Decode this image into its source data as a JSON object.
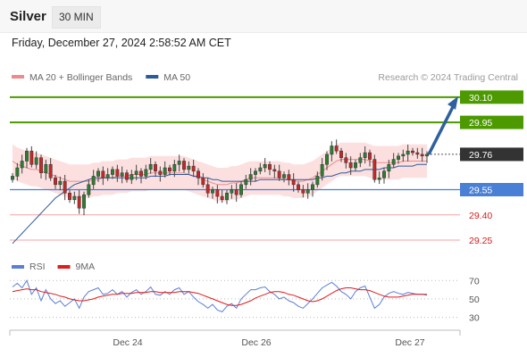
{
  "header": {
    "instrument": "Silver",
    "timeframe": "30 MIN"
  },
  "timestamp": "Friday, December 27, 2024 2:58:52 AM CET",
  "legend": [
    {
      "label": "MA 20 + Bollinger Bands",
      "color": "#f08a8a"
    },
    {
      "label": "MA 50",
      "color": "#2d5a9b"
    }
  ],
  "credit": "Research © 2024 Trading Central",
  "rsi_legend": [
    {
      "label": "RSI",
      "color": "#5b7fd6"
    },
    {
      "label": "9MA",
      "color": "#e21b1b"
    }
  ],
  "colors": {
    "resistance": "#4c9a00",
    "pivot": "#4a7fd6",
    "support": "#f4a3a3",
    "support_text": "#d32020",
    "last": "#333333",
    "arrow": "#2e5f9e",
    "candle_up": "#2e7d32",
    "candle_down": "#c62828",
    "band": "#fbd3d3"
  },
  "chart_data": {
    "type": "candlestick",
    "price_ylim": [
      29.16,
      30.2
    ],
    "x_ticks": [
      "Dec 24",
      "Dec 26",
      "Dec 27"
    ],
    "levels": [
      {
        "value": 30.1,
        "label": "30.10",
        "kind": "resistance"
      },
      {
        "value": 29.95,
        "label": "29.95",
        "kind": "resistance"
      },
      {
        "value": 29.76,
        "label": "29.76",
        "kind": "last"
      },
      {
        "value": 29.55,
        "label": "29.55",
        "kind": "pivot"
      },
      {
        "value": 29.4,
        "label": "29.40",
        "kind": "support"
      },
      {
        "value": 29.25,
        "label": "29.25",
        "kind": "support"
      }
    ],
    "close": [
      29.63,
      29.68,
      29.72,
      29.78,
      29.7,
      29.74,
      29.65,
      29.7,
      29.62,
      29.58,
      29.6,
      29.53,
      29.49,
      29.51,
      29.44,
      29.52,
      29.58,
      29.63,
      29.66,
      29.62,
      29.64,
      29.67,
      29.63,
      29.65,
      29.61,
      29.64,
      29.66,
      29.63,
      29.67,
      29.7,
      29.66,
      29.64,
      29.68,
      29.66,
      29.7,
      29.72,
      29.67,
      29.69,
      29.66,
      29.62,
      29.58,
      29.53,
      29.55,
      29.51,
      29.49,
      29.53,
      29.55,
      29.52,
      29.58,
      29.61,
      29.64,
      29.66,
      29.68,
      29.7,
      29.67,
      29.66,
      29.62,
      29.64,
      29.61,
      29.58,
      29.55,
      29.53,
      29.55,
      29.58,
      29.63,
      29.7,
      29.76,
      29.81,
      29.78,
      29.74,
      29.71,
      29.68,
      29.71,
      29.74,
      29.77,
      29.73,
      29.61,
      29.62,
      29.66,
      29.7,
      29.73,
      29.75,
      29.76,
      29.78,
      29.77,
      29.76,
      29.75,
      29.76
    ],
    "ma20": [
      29.72,
      29.7,
      29.69,
      29.68,
      29.67,
      29.67,
      29.66,
      29.65,
      29.64,
      29.63,
      29.62,
      29.61,
      29.6,
      29.6,
      29.6,
      29.6,
      29.6,
      29.61,
      29.61,
      29.62,
      29.62,
      29.62,
      29.63,
      29.63,
      29.63,
      29.64,
      29.64,
      29.64,
      29.64,
      29.65,
      29.65,
      29.65,
      29.65,
      29.65,
      29.65,
      29.65,
      29.65,
      29.64,
      29.63,
      29.62,
      29.61,
      29.6,
      29.59,
      29.58,
      29.58,
      29.58,
      29.59,
      29.59,
      29.6,
      29.61,
      29.62,
      29.62,
      29.62,
      29.62,
      29.62,
      29.62,
      29.62,
      29.61,
      29.61,
      29.6,
      29.6,
      29.6,
      29.61,
      29.62,
      29.64,
      29.66,
      29.68,
      29.7,
      29.72,
      29.73,
      29.73,
      29.73,
      29.73,
      29.73,
      29.73,
      29.72,
      29.71,
      29.71,
      29.71,
      29.71,
      29.71,
      29.71,
      29.72,
      29.72,
      29.72,
      29.72,
      29.72,
      29.72
    ],
    "ma50": [
      29.23,
      29.26,
      29.29,
      29.32,
      29.35,
      29.38,
      29.41,
      29.44,
      29.47,
      29.5,
      29.52,
      29.54,
      29.56,
      29.58,
      29.59,
      29.6,
      29.61,
      29.62,
      29.62,
      29.62,
      29.62,
      29.62,
      29.62,
      29.62,
      29.62,
      29.62,
      29.62,
      29.62,
      29.62,
      29.63,
      29.63,
      29.63,
      29.63,
      29.64,
      29.64,
      29.64,
      29.64,
      29.64,
      29.63,
      29.63,
      29.62,
      29.62,
      29.61,
      29.61,
      29.6,
      29.6,
      29.6,
      29.6,
      29.6,
      29.6,
      29.6,
      29.6,
      29.61,
      29.61,
      29.61,
      29.61,
      29.61,
      29.61,
      29.61,
      29.61,
      29.61,
      29.61,
      29.61,
      29.61,
      29.62,
      29.62,
      29.63,
      29.63,
      29.64,
      29.65,
      29.65,
      29.66,
      29.66,
      29.66,
      29.67,
      29.67,
      29.67,
      29.67,
      29.68,
      29.68,
      29.68,
      29.69,
      29.69,
      29.69,
      29.69,
      29.7,
      29.7,
      29.7
    ],
    "bb_width": 0.1,
    "rsi_ylim": [
      18,
      78
    ],
    "rsi_levels": [
      70,
      50,
      30
    ],
    "rsi": [
      63,
      67,
      62,
      70,
      55,
      62,
      48,
      60,
      50,
      45,
      48,
      42,
      46,
      50,
      40,
      52,
      58,
      60,
      62,
      55,
      56,
      60,
      55,
      58,
      52,
      57,
      60,
      55,
      58,
      63,
      55,
      54,
      58,
      55,
      60,
      62,
      55,
      58,
      52,
      47,
      44,
      40,
      44,
      38,
      36,
      42,
      45,
      40,
      50,
      55,
      60,
      60,
      62,
      63,
      58,
      55,
      50,
      52,
      48,
      46,
      42,
      40,
      45,
      50,
      56,
      62,
      65,
      68,
      64,
      58,
      55,
      50,
      58,
      62,
      64,
      52,
      40,
      44,
      52,
      56,
      58,
      56,
      55,
      57,
      56,
      55,
      55,
      54
    ],
    "rsi_ma": [
      58,
      59,
      60,
      61,
      60,
      60,
      58,
      57,
      56,
      55,
      53,
      52,
      50,
      49,
      48,
      48,
      49,
      50,
      52,
      53,
      54,
      55,
      55,
      56,
      56,
      56,
      57,
      57,
      57,
      58,
      58,
      57,
      57,
      57,
      57,
      58,
      58,
      58,
      57,
      56,
      54,
      52,
      50,
      48,
      46,
      44,
      43,
      43,
      44,
      46,
      48,
      51,
      53,
      55,
      57,
      58,
      58,
      57,
      55,
      54,
      52,
      50,
      48,
      47,
      48,
      50,
      53,
      56,
      59,
      61,
      62,
      62,
      61,
      60,
      60,
      59,
      57,
      55,
      53,
      52,
      52,
      52,
      53,
      54,
      55,
      55,
      55,
      55
    ]
  }
}
